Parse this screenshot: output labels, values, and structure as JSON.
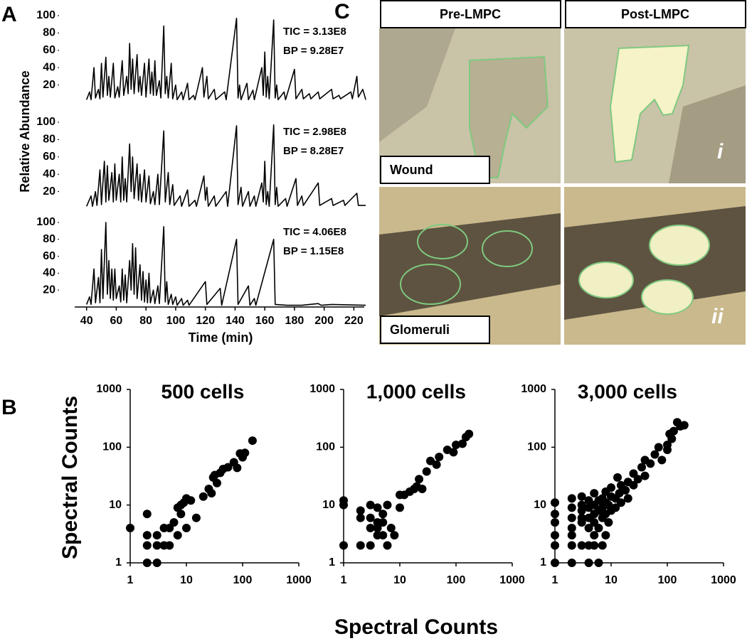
{
  "panel_labels": [
    "A",
    "B",
    "C"
  ],
  "panel_a": {
    "y_label": "Relative Abundance",
    "x_label": "Time (min)"
  },
  "panel_b": {
    "y_label": "Spectral Counts",
    "x_label": "Spectral Counts"
  },
  "panel_c": {
    "columns": [
      "Pre-LMPC",
      "Post-LMPC"
    ],
    "rows": [
      "Wound",
      "Glomeruli"
    ],
    "markers": [
      "i",
      "ii"
    ]
  },
  "chart_data": [
    {
      "type": "line",
      "annotations": [
        "TIC = 3.13E8",
        "BP = 9.28E7"
      ],
      "color": "#000000",
      "xlim": [
        32,
        227
      ],
      "ylim": [
        0,
        100
      ],
      "yticks": [
        20,
        40,
        60,
        80,
        100
      ],
      "x": [
        40,
        42,
        43,
        45,
        46,
        48,
        49,
        50,
        51,
        53,
        54,
        55,
        56,
        58,
        59,
        61,
        62,
        64,
        65,
        67,
        68,
        69,
        70,
        71,
        72,
        74,
        75,
        76,
        77,
        79,
        80,
        82,
        83,
        84,
        85,
        86,
        87,
        89,
        90,
        92,
        93,
        94,
        95,
        97,
        98,
        100,
        101,
        104,
        105,
        108,
        109,
        112,
        113,
        118,
        119,
        121,
        122,
        126,
        127,
        133,
        134,
        141,
        142,
        143,
        144,
        148,
        149,
        152,
        153,
        158,
        159,
        160,
        161,
        162,
        163,
        166,
        167,
        168,
        169,
        173,
        174,
        180,
        181,
        185,
        186,
        190,
        191,
        196,
        197,
        205,
        206,
        210,
        211,
        218,
        219,
        222,
        223,
        226,
        228
      ],
      "values": [
        3,
        12,
        3,
        40,
        5,
        15,
        4,
        45,
        6,
        52,
        8,
        30,
        6,
        45,
        5,
        18,
        6,
        48,
        8,
        30,
        10,
        68,
        15,
        50,
        10,
        55,
        12,
        30,
        8,
        45,
        6,
        50,
        10,
        35,
        8,
        48,
        8,
        25,
        5,
        88,
        10,
        30,
        5,
        45,
        4,
        20,
        3,
        12,
        3,
        22,
        3,
        8,
        3,
        40,
        6,
        30,
        4,
        15,
        3,
        12,
        3,
        97,
        5,
        20,
        3,
        22,
        3,
        14,
        3,
        40,
        8,
        58,
        6,
        30,
        4,
        95,
        5,
        20,
        3,
        12,
        3,
        38,
        4,
        15,
        4,
        10,
        4,
        12,
        4,
        15,
        4,
        8,
        4,
        12,
        4,
        30,
        6,
        15,
        3
      ]
    },
    {
      "type": "line",
      "annotations": [
        "TIC = 2.98E8",
        "BP = 8.28E7"
      ],
      "color": "#000000",
      "xlim": [
        32,
        227
      ],
      "ylim": [
        0,
        100
      ],
      "yticks": [
        20,
        40,
        60,
        80,
        100
      ],
      "x": [
        40,
        43,
        44,
        46,
        47,
        49,
        50,
        52,
        53,
        54,
        55,
        57,
        58,
        59,
        60,
        62,
        63,
        64,
        65,
        66,
        67,
        69,
        70,
        71,
        72,
        74,
        75,
        76,
        77,
        79,
        80,
        82,
        83,
        85,
        86,
        88,
        89,
        92,
        93,
        95,
        96,
        98,
        99,
        103,
        104,
        108,
        109,
        113,
        114,
        119,
        120,
        121,
        122,
        126,
        127,
        134,
        135,
        141,
        142,
        144,
        145,
        149,
        150,
        153,
        154,
        158,
        159,
        160,
        161,
        162,
        163,
        166,
        167,
        168,
        169,
        174,
        175,
        181,
        182,
        185,
        186,
        196,
        197,
        205,
        206,
        213,
        214,
        222,
        223,
        228
      ],
      "values": [
        3,
        15,
        3,
        20,
        4,
        45,
        5,
        55,
        8,
        50,
        10,
        42,
        8,
        52,
        10,
        40,
        8,
        60,
        10,
        35,
        8,
        75,
        20,
        60,
        12,
        52,
        10,
        40,
        8,
        45,
        8,
        38,
        6,
        20,
        5,
        40,
        5,
        90,
        8,
        42,
        5,
        28,
        4,
        15,
        3,
        22,
        3,
        10,
        3,
        38,
        10,
        25,
        3,
        15,
        3,
        20,
        3,
        96,
        5,
        25,
        3,
        20,
        3,
        15,
        3,
        30,
        8,
        55,
        5,
        20,
        3,
        97,
        5,
        25,
        3,
        12,
        3,
        35,
        4,
        15,
        4,
        30,
        4,
        12,
        4,
        10,
        4,
        18,
        4,
        4
      ]
    },
    {
      "type": "line",
      "annotations": [
        "TIC = 4.06E8",
        "BP = 1.15E8"
      ],
      "color": "#000000",
      "xlim": [
        32,
        227
      ],
      "ylim": [
        0,
        100
      ],
      "yticks": [
        20,
        40,
        60,
        80,
        100
      ],
      "xticks": [
        40,
        60,
        80,
        100,
        120,
        140,
        160,
        180,
        200,
        220
      ],
      "x": [
        40,
        42,
        43,
        45,
        46,
        48,
        49,
        50,
        51,
        53,
        54,
        55,
        56,
        57,
        58,
        59,
        60,
        62,
        63,
        64,
        65,
        66,
        67,
        69,
        70,
        71,
        72,
        73,
        74,
        76,
        77,
        78,
        79,
        80,
        81,
        82,
        83,
        85,
        86,
        88,
        89,
        92,
        93,
        94,
        95,
        97,
        98,
        100,
        101,
        104,
        105,
        108,
        109,
        120,
        121,
        130,
        131,
        141,
        142,
        149,
        150,
        153,
        154,
        166,
        167,
        175,
        185,
        196,
        198,
        205,
        228
      ],
      "values": [
        3,
        12,
        3,
        45,
        5,
        35,
        5,
        68,
        10,
        100,
        15,
        55,
        10,
        45,
        8,
        45,
        10,
        25,
        6,
        45,
        8,
        38,
        5,
        55,
        20,
        75,
        15,
        70,
        10,
        50,
        8,
        42,
        6,
        32,
        5,
        40,
        5,
        20,
        4,
        25,
        4,
        95,
        6,
        30,
        3,
        15,
        3,
        12,
        2,
        10,
        2,
        8,
        2,
        30,
        3,
        22,
        2,
        80,
        3,
        25,
        2,
        10,
        2,
        80,
        3,
        2,
        2,
        4,
        2,
        3,
        2
      ]
    },
    {
      "type": "scatter",
      "title": "500 cells",
      "log_scale": true,
      "color": "#000000",
      "xlim": [
        1,
        1000
      ],
      "ylim": [
        1,
        1000
      ],
      "xticks": [
        1,
        10,
        100,
        1000
      ],
      "yticks": [
        1,
        10,
        100,
        1000
      ],
      "x": [
        1,
        2,
        2,
        2,
        2,
        3,
        3,
        3,
        4,
        4,
        5,
        5,
        6,
        7,
        7,
        8,
        8,
        9,
        10,
        10,
        12,
        15,
        20,
        25,
        28,
        30,
        32,
        35,
        40,
        45,
        55,
        70,
        80,
        90,
        100,
        110,
        150
      ],
      "values": [
        4,
        7,
        3,
        2,
        1,
        3,
        2,
        1,
        4,
        2,
        2,
        4,
        5,
        9,
        3,
        10,
        7,
        11,
        4,
        13,
        12,
        6,
        14,
        19,
        16,
        30,
        33,
        24,
        36,
        42,
        45,
        55,
        44,
        78,
        67,
        80,
        130
      ]
    },
    {
      "type": "scatter",
      "title": "1,000 cells",
      "log_scale": true,
      "color": "#000000",
      "xlim": [
        1,
        1000
      ],
      "ylim": [
        1,
        1000
      ],
      "xticks": [
        1,
        10,
        100,
        1000
      ],
      "yticks": [
        1,
        10,
        100,
        1000
      ],
      "x": [
        1,
        1,
        1,
        2,
        2,
        2,
        3,
        3,
        3,
        3,
        4,
        4,
        4,
        4,
        5,
        5,
        5,
        6,
        6,
        7,
        8,
        10,
        10,
        12,
        15,
        18,
        20,
        22,
        25,
        30,
        35,
        45,
        50,
        70,
        90,
        100,
        130,
        150,
        170
      ],
      "values": [
        2,
        10,
        12,
        2,
        8,
        6,
        10,
        6,
        4,
        2,
        4,
        3,
        9,
        5,
        5,
        3,
        7,
        10,
        2,
        4,
        3,
        9,
        15,
        15,
        17,
        19,
        21,
        28,
        19,
        38,
        58,
        50,
        68,
        90,
        82,
        110,
        115,
        150,
        170
      ]
    },
    {
      "type": "scatter",
      "title": "3,000 cells",
      "log_scale": true,
      "color": "#000000",
      "xlim": [
        1,
        1000
      ],
      "ylim": [
        1,
        1000
      ],
      "xticks": [
        1,
        10,
        100,
        1000
      ],
      "yticks": [
        1,
        10,
        100,
        1000
      ],
      "x": [
        1,
        1,
        1,
        1,
        1,
        1,
        2,
        2,
        2,
        2,
        2,
        2,
        2,
        3,
        3,
        3,
        3,
        3,
        3,
        4,
        4,
        4,
        4,
        4,
        4,
        5,
        5,
        5,
        5,
        5,
        5,
        6,
        6,
        6,
        6,
        7,
        7,
        7,
        7,
        8,
        8,
        8,
        8,
        9,
        9,
        10,
        10,
        10,
        12,
        12,
        13,
        14,
        15,
        15,
        18,
        20,
        20,
        25,
        25,
        30,
        35,
        40,
        40,
        50,
        60,
        70,
        80,
        100,
        100,
        120,
        130,
        150,
        170,
        200,
        110
      ],
      "values": [
        1,
        2,
        3,
        5,
        7,
        11,
        1,
        2,
        3,
        4,
        6,
        9,
        13,
        2,
        5,
        6,
        8,
        10,
        14,
        1,
        2,
        4,
        6,
        9,
        12,
        2,
        3,
        5,
        7,
        10,
        16,
        1,
        4,
        8,
        12,
        2,
        6,
        9,
        13,
        3,
        7,
        11,
        17,
        5,
        10,
        8,
        14,
        20,
        9,
        13,
        30,
        16,
        11,
        22,
        18,
        25,
        13,
        35,
        22,
        28,
        45,
        32,
        60,
        52,
        75,
        100,
        60,
        110,
        90,
        140,
        190,
        270,
        230,
        240,
        170
      ]
    }
  ]
}
